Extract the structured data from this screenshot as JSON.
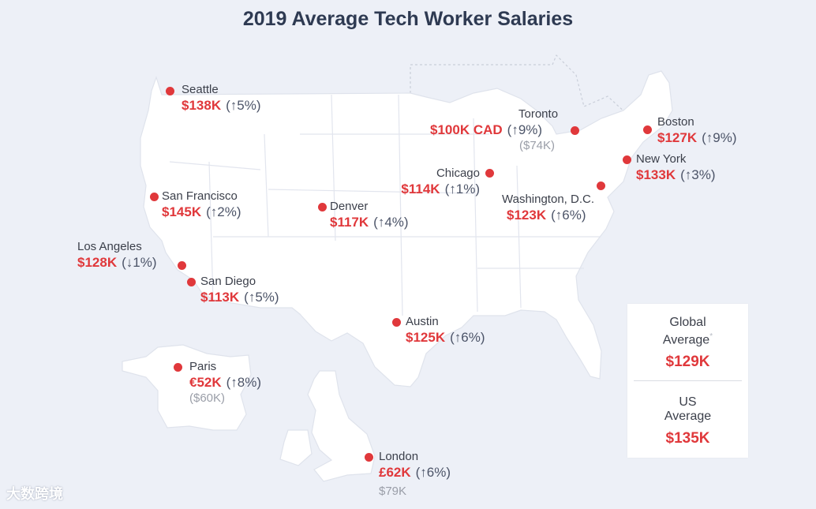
{
  "title": "2019 Average Tech Worker Salaries",
  "colors": {
    "accent": "#e0383b",
    "text": "#3b3f4a",
    "land": "#ffffff",
    "background": "#edf0f7"
  },
  "cities": {
    "seattle": {
      "name": "Seattle",
      "salary": "$138K",
      "change": "(↑5%)"
    },
    "sf": {
      "name": "San Francisco",
      "salary": "$145K",
      "change": "(↑2%)"
    },
    "la": {
      "name": "Los Angeles",
      "salary": "$128K",
      "change": "(↓1%)"
    },
    "sd": {
      "name": "San Diego",
      "salary": "$113K",
      "change": "(↑5%)"
    },
    "denver": {
      "name": "Denver",
      "salary": "$117K",
      "change": "(↑4%)"
    },
    "chicago": {
      "name": "Chicago",
      "salary": "$114K",
      "change": "(↑1%)"
    },
    "austin": {
      "name": "Austin",
      "salary": "$125K",
      "change": "(↑6%)"
    },
    "toronto": {
      "name": "Toronto",
      "salary": "$100K CAD",
      "change": "(↑9%)",
      "converted": "($74K)"
    },
    "boston": {
      "name": "Boston",
      "salary": "$127K",
      "change": "(↑9%)"
    },
    "newyork": {
      "name": "New York",
      "salary": "$133K",
      "change": "(↑3%)"
    },
    "dc": {
      "name": "Washington, D.C.",
      "salary": "$123K",
      "change": "(↑6%)"
    },
    "paris": {
      "name": "Paris",
      "salary": "€52K",
      "change": "(↑8%)",
      "converted": "($60K)"
    },
    "london": {
      "name": "London",
      "salary": "£62K",
      "change": "(↑6%)",
      "converted": "$79K"
    }
  },
  "averages": {
    "global": {
      "label_line1": "Global",
      "label_line2": "Average",
      "mark": "*",
      "value": "$129K"
    },
    "us": {
      "label_line1": "US",
      "label_line2": "Average",
      "value": "$135K"
    }
  },
  "watermark": "大数跨境"
}
